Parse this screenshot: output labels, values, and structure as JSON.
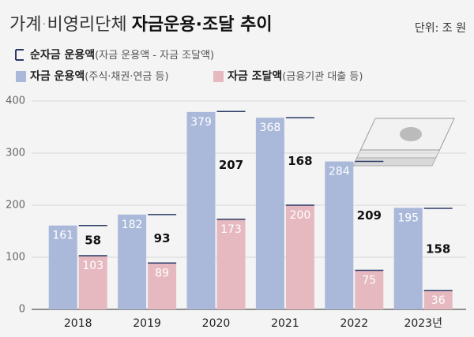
{
  "chart_data": {
    "type": "bar",
    "title": "가계·비영리단체",
    "title_bold": "자금운용·조달 추이",
    "unit": "단위: 조 원",
    "categories": [
      "2018",
      "2019",
      "2020",
      "2021",
      "2022",
      "2023년"
    ],
    "series": [
      {
        "name": "순자금 운용액",
        "legend_note": "(자금 운용액 - 자금 조달액)",
        "color": "#2b3a67",
        "values": [
          58,
          93,
          207,
          168,
          209,
          158
        ]
      },
      {
        "name": "자금 운용액",
        "legend_note": "(주식·채권·연금 등)",
        "color": "#aab9da",
        "values": [
          161,
          182,
          379,
          368,
          284,
          195
        ]
      },
      {
        "name": "자금 조달액",
        "legend_note": "(금융기관 대출 등)",
        "color": "#e6b9c0",
        "values": [
          103,
          89,
          173,
          200,
          75,
          36
        ]
      }
    ],
    "ylim": [
      0,
      400
    ],
    "yticks": [
      0,
      100,
      200,
      300,
      400
    ],
    "grid": true
  }
}
